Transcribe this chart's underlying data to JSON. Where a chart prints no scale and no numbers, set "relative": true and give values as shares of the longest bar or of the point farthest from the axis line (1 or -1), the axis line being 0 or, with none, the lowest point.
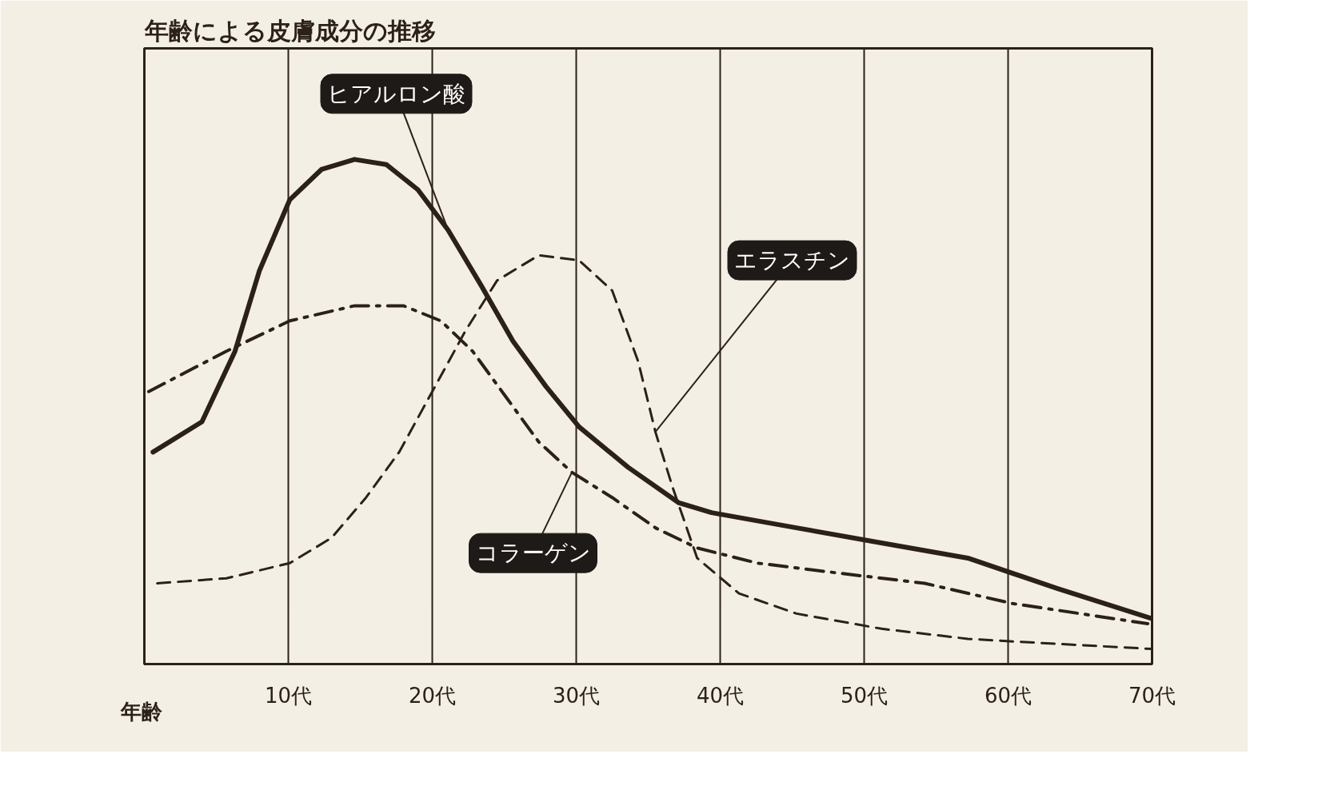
{
  "chart_data": {
    "type": "line",
    "title": "年齢による皮膚成分の推移",
    "xlabel": "年齢",
    "relative": true,
    "grid": "x",
    "xlim": [
      0,
      70
    ],
    "xticks": [
      {
        "value": 10,
        "label": "10代"
      },
      {
        "value": 20,
        "label": "20代"
      },
      {
        "value": 30,
        "label": "30代"
      },
      {
        "value": 40,
        "label": "40代"
      },
      {
        "value": 50,
        "label": "50代"
      },
      {
        "value": 60,
        "label": "60代"
      },
      {
        "value": 70,
        "label": "70代"
      }
    ],
    "series": [
      {
        "name": "ヒアルロン酸",
        "color": "#2b2118",
        "line_style": "solid",
        "x": [
          0.6,
          4.0,
          6.3,
          8.0,
          10.1,
          12.3,
          14.6,
          16.8,
          19.0,
          21.1,
          23.4,
          25.6,
          27.9,
          30.2,
          33.6,
          37.1,
          39.4,
          45.3,
          51.2,
          57.2,
          63.4,
          70
        ],
        "values": [
          0.42,
          0.48,
          0.62,
          0.78,
          0.92,
          0.98,
          1.0,
          0.99,
          0.94,
          0.86,
          0.75,
          0.64,
          0.55,
          0.47,
          0.39,
          0.32,
          0.3,
          0.27,
          0.24,
          0.21,
          0.15,
          0.09
        ]
      },
      {
        "name": "エラスチン",
        "color": "#2b2118",
        "line_style": "dashed",
        "x": [
          0.9,
          5.7,
          10.1,
          13.0,
          15.4,
          17.7,
          20.0,
          22.3,
          24.5,
          27.4,
          30.2,
          32.5,
          34.3,
          35.5,
          36.7,
          38.4,
          41.3,
          45.3,
          51.2,
          57.2,
          63.4,
          70
        ],
        "values": [
          0.16,
          0.17,
          0.2,
          0.25,
          0.33,
          0.42,
          0.54,
          0.66,
          0.76,
          0.81,
          0.8,
          0.74,
          0.6,
          0.46,
          0.35,
          0.21,
          0.14,
          0.1,
          0.07,
          0.05,
          0.04,
          0.03
        ]
      },
      {
        "name": "コラーゲン",
        "color": "#2b2118",
        "line_style": "dashdot",
        "x": [
          0.3,
          5.7,
          10.1,
          14.6,
          18.0,
          20.6,
          22.8,
          25.1,
          27.4,
          29.7,
          32.5,
          35.5,
          38.4,
          42.6,
          48.3,
          54.2,
          60.3,
          69.7
        ],
        "values": [
          0.54,
          0.62,
          0.68,
          0.71,
          0.71,
          0.68,
          0.62,
          0.53,
          0.44,
          0.38,
          0.33,
          0.27,
          0.23,
          0.2,
          0.18,
          0.16,
          0.12,
          0.08
        ]
      }
    ]
  }
}
